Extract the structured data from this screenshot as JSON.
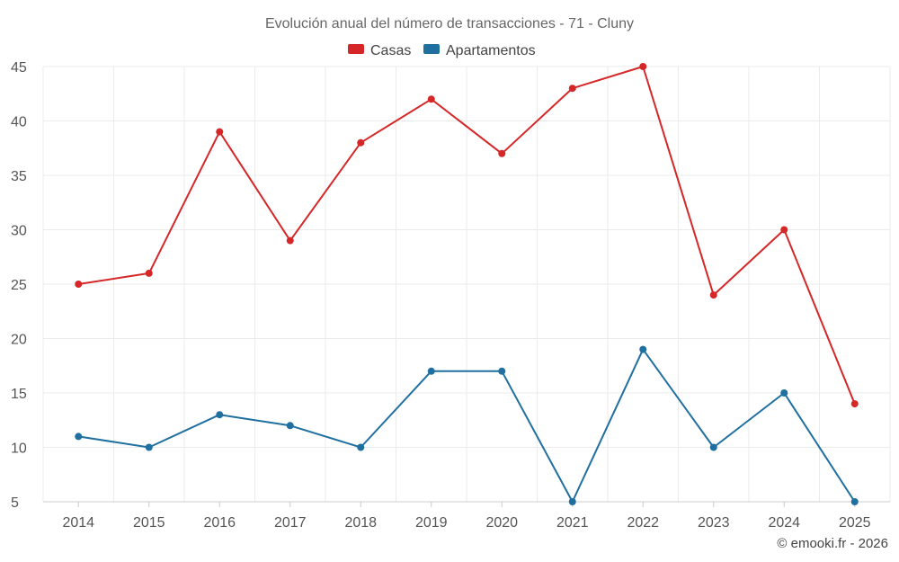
{
  "chart_data": {
    "type": "line",
    "title": "Evolución anual del número de transacciones - 71 - Cluny",
    "xlabel": "",
    "ylabel": "",
    "categories": [
      "2014",
      "2015",
      "2016",
      "2017",
      "2018",
      "2019",
      "2020",
      "2021",
      "2022",
      "2023",
      "2024",
      "2025"
    ],
    "ylim": [
      5,
      45
    ],
    "yticks": [
      5,
      10,
      15,
      20,
      25,
      30,
      35,
      40,
      45
    ],
    "grid": true,
    "legend_position": "top-center",
    "series": [
      {
        "name": "Casas",
        "color": "#d62728",
        "values": [
          25,
          26,
          39,
          29,
          38,
          42,
          37,
          43,
          45,
          24,
          30,
          14
        ]
      },
      {
        "name": "Apartamentos",
        "color": "#1f6fa0",
        "values": [
          11,
          10,
          13,
          12,
          10,
          17,
          17,
          5,
          19,
          10,
          15,
          5
        ]
      }
    ]
  },
  "credit": "© emooki.fr - 2026"
}
